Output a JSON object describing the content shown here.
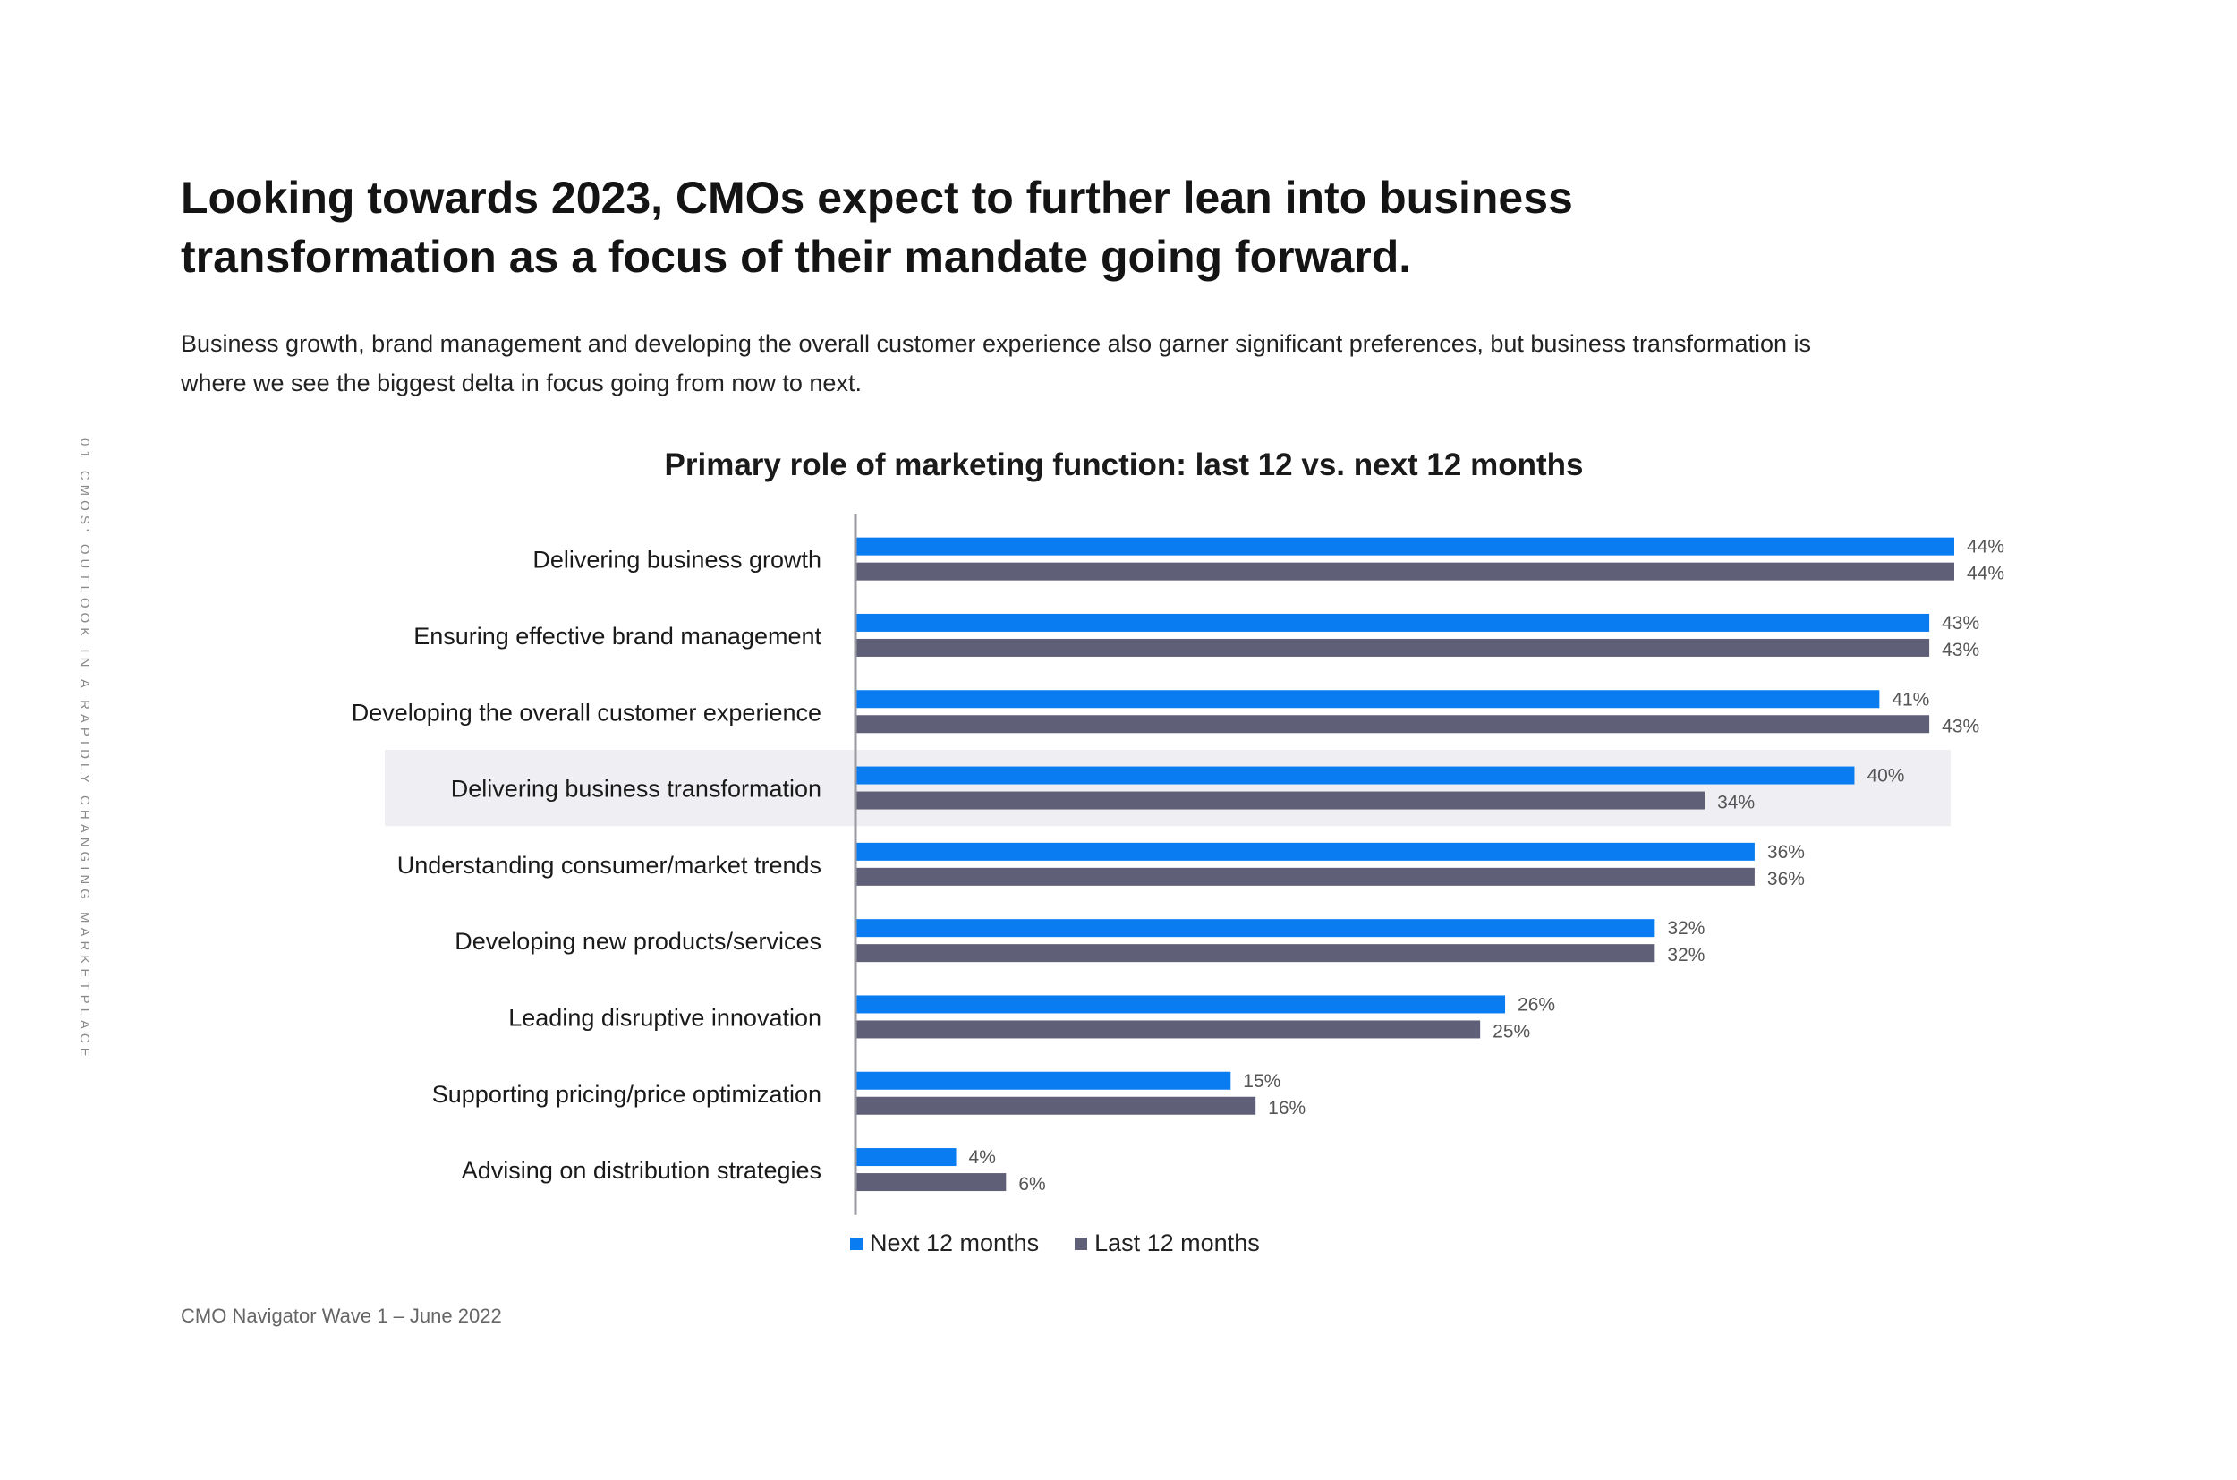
{
  "side_label": "01 CMOS' OUTLOOK IN A RAPIDLY CHANGING MARKETPLACE",
  "headline": {
    "line1": "Looking towards 2023,  CMOs expect to further lean into business",
    "line2": "transformation as a focus of their mandate going forward."
  },
  "subtitle": {
    "line1": "Business growth, brand management and developing the overall customer experience also garner significant preferences, but business transformation is",
    "line2": "where we see the biggest delta in focus going from now to next."
  },
  "footer": "CMO Navigator Wave 1 – June 2022",
  "colors": {
    "next": "#0a7cf2",
    "last": "#5f6078",
    "highlight": "#efeff3",
    "axis": "#9a9aa0"
  },
  "chart_data": {
    "type": "bar",
    "orientation": "horizontal",
    "title": "Primary role of marketing function: last 12 vs. next 12 months",
    "categories": [
      "Delivering business growth",
      "Ensuring effective brand management",
      "Developing the overall customer experience",
      "Delivering business transformation",
      "Understanding consumer/market trends",
      "Developing new products/services",
      "Leading disruptive innovation",
      "Supporting pricing/price optimization",
      "Advising on distribution strategies"
    ],
    "highlighted_category": "Delivering business transformation",
    "series": [
      {
        "name": "Next 12 months",
        "values": [
          44,
          43,
          41,
          40,
          36,
          32,
          26,
          15,
          4
        ],
        "labels": [
          "44%",
          "43%",
          "41%",
          "40%",
          "36%",
          "32%",
          "26%",
          "15%",
          "4%"
        ]
      },
      {
        "name": "Last 12 months",
        "values": [
          44,
          43,
          43,
          34,
          36,
          32,
          25,
          16,
          6
        ],
        "labels": [
          "44%",
          "43%",
          "43%",
          "34%",
          "36%",
          "32%",
          "25%",
          "16%",
          "6%"
        ]
      }
    ],
    "xlim": [
      0,
      44
    ],
    "unit": "%",
    "legend": "bottom-center"
  }
}
